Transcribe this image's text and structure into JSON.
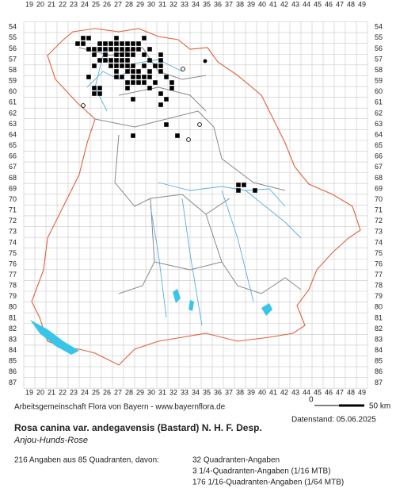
{
  "map": {
    "x_labels": [
      19,
      20,
      21,
      22,
      23,
      24,
      25,
      26,
      27,
      28,
      29,
      30,
      31,
      32,
      33,
      34,
      35,
      36,
      37,
      38,
      39,
      40,
      41,
      42,
      43,
      44,
      45,
      46,
      47,
      48,
      49
    ],
    "y_labels": [
      54,
      55,
      56,
      57,
      58,
      59,
      60,
      61,
      62,
      63,
      64,
      65,
      66,
      67,
      68,
      69,
      70,
      71,
      72,
      73,
      74,
      75,
      76,
      77,
      78,
      79,
      80,
      81,
      82,
      83,
      84,
      85,
      86,
      87
    ],
    "credit": "Arbeitsgemeinschaft Flora von Bayern - www.bayernflora.de",
    "scale_start": "0",
    "scale_end": "50 km",
    "date": "Datenstand: 05.06.2025",
    "title": "Rosa canina var. andegavensis (Bastard) N. H. F. Desp.",
    "subtitle": "Anjou-Hunds-Rose",
    "summary": "216 Angaben aus 85 Quadranten, davon:",
    "legend": [
      "32 Quadranten-Angaben",
      "3 1/4-Quadranten-Angaben (1/16 MTB)",
      "176 1/16-Quadranten-Angaben (1/64 MTB)"
    ]
  }
}
